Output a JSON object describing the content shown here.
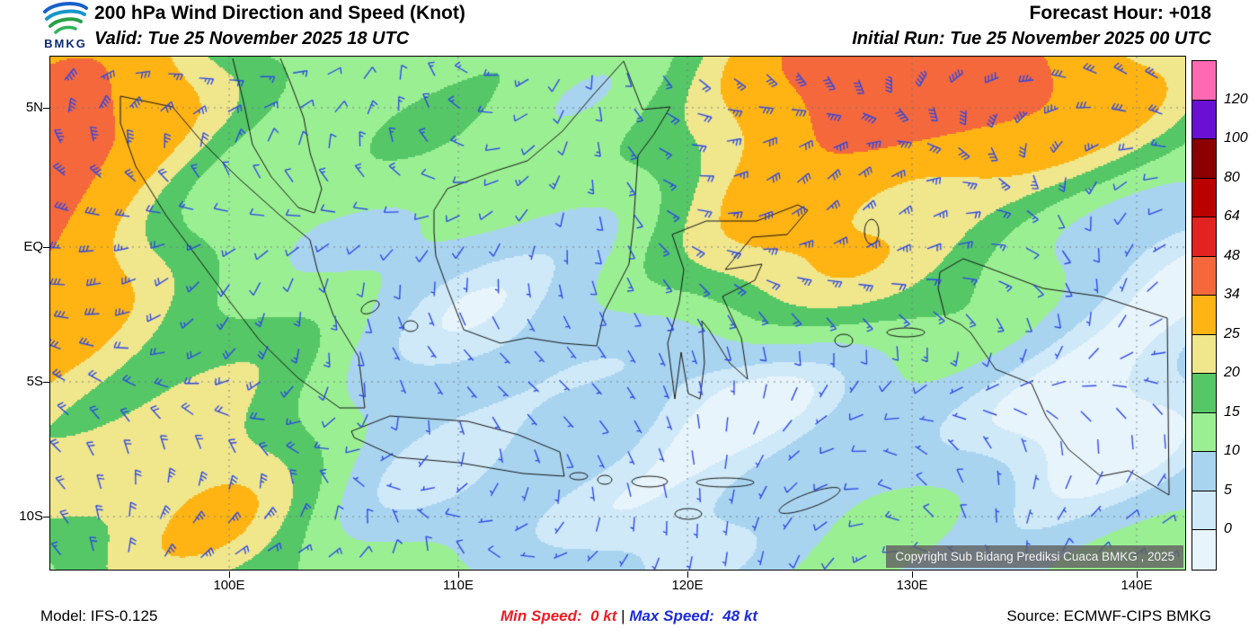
{
  "header": {
    "logo_text": "BMKG",
    "title": "200 hPa Wind Direction and Speed (Knot)",
    "valid": "Valid: Tue 25 November 2025 18 UTC",
    "forecast_hour": "Forecast Hour: +018",
    "initial_run": "Initial Run: Tue 25 November 2025 00 UTC"
  },
  "map": {
    "lat_labels": [
      "5N",
      "EQ",
      "5S",
      "10S"
    ],
    "lon_labels": [
      "100E",
      "110E",
      "120E",
      "130E",
      "140E"
    ],
    "copyright": "Copyright Sub Bidang Prediksi Cuaca BMKG , 2025",
    "barb_color": "#2b46e6"
  },
  "legend": {
    "values": [
      "120",
      "100",
      "80",
      "64",
      "48",
      "34",
      "25",
      "20",
      "15",
      "10",
      "5",
      "0"
    ],
    "colors": [
      "#ff69b4",
      "#6a10d4",
      "#8b0000",
      "#bb0000",
      "#e32222",
      "#f4683c",
      "#ffb414",
      "#f0e68c",
      "#55c767",
      "#9bef93",
      "#a9d4f0",
      "#cfe9f8",
      "#e8f4fb"
    ]
  },
  "footer": {
    "model": "Model: IFS-0.125",
    "min_speed": "Min Speed:  0 kt",
    "divider": " | ",
    "max_speed": "Max Speed:  48 kt",
    "source": "Source: ECMWF-CIPS BMKG",
    "min_color": "#ee1c24",
    "max_color": "#1b2bd6"
  },
  "chart_data": {
    "type": "heatmap",
    "title": "200 hPa Wind Direction and Speed (Knot)",
    "units": "knot",
    "level": "200 hPa",
    "valid_time": "Tue 25 November 2025 18 UTC",
    "initial_run": "Tue 25 November 2025 00 UTC",
    "forecast_hour": "+018",
    "model": "IFS-0.125",
    "source": "ECMWF-CIPS BMKG",
    "min_speed_kt": 0,
    "max_speed_kt": 48,
    "x_ticks": [
      "100E",
      "110E",
      "120E",
      "130E",
      "140E"
    ],
    "y_ticks": [
      "5N",
      "EQ",
      "5S",
      "10S"
    ],
    "color_scale_boundaries_kt": [
      0,
      5,
      10,
      15,
      20,
      25,
      34,
      48,
      64,
      80,
      100,
      120
    ],
    "color_scale_colors_high_to_low": [
      "#ff69b4",
      "#6a10d4",
      "#8b0000",
      "#bb0000",
      "#e32222",
      "#f4683c",
      "#ffb414",
      "#f0e68c",
      "#55c767",
      "#9bef93",
      "#a9d4f0",
      "#cfe9f8",
      "#e8f4fb"
    ],
    "legend_position": "right",
    "grid": "dashed latitude/longitude lines",
    "notes": "Blue wind barbs over speed shading across Indonesia; strongest winds 34-48 kt (orange-red) northeast of Sulawesi, 25-34 kt (amber) over western Sumatra and northern Maluku, light 0-10 kt winds (pale blue) over southern interior seas and the far east/southeast."
  }
}
